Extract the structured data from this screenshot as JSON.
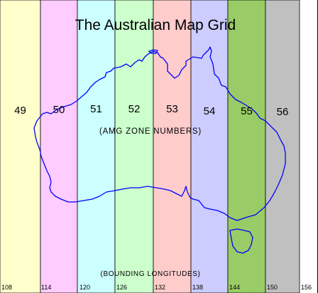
{
  "title": "The Australian Map Grid",
  "zone_subtitle": "(AMG ZONE NUMBERS)",
  "longitude_caption": "(BOUNDING LONGITUDES)",
  "zones": [
    {
      "number": "49",
      "color": "#ffffcc"
    },
    {
      "number": "50",
      "color": "#ffccff"
    },
    {
      "number": "51",
      "color": "#ccffff"
    },
    {
      "number": "52",
      "color": "#ccffcc"
    },
    {
      "number": "53",
      "color": "#ffcccc"
    },
    {
      "number": "54",
      "color": "#ccccff"
    },
    {
      "number": "55",
      "color": "#99cc66"
    },
    {
      "number": "56",
      "color": "#c0c0c0"
    }
  ],
  "longitudes": [
    "108",
    "114",
    "120",
    "126",
    "132",
    "138",
    "144",
    "150",
    "156"
  ],
  "coastline_color": "#0000ff"
}
